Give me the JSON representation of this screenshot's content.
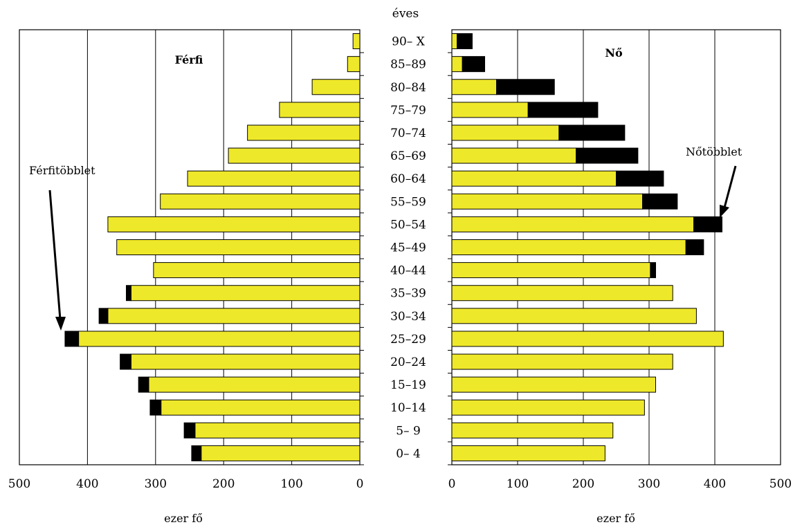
{
  "chart_data": {
    "type": "bar",
    "subtype": "population-pyramid",
    "age_axis_label": "éves",
    "categories": [
      "0– 4",
      "5– 9",
      "10–14",
      "15–19",
      "20–24",
      "25–29",
      "30–34",
      "35–39",
      "40–44",
      "45–49",
      "50–54",
      "55–59",
      "60–64",
      "65–69",
      "70–74",
      "75–79",
      "80–84",
      "85–89",
      "90– X"
    ],
    "left_panel": {
      "title": "Férfi",
      "xlabel": "ezer fő",
      "xlim": [
        0,
        500
      ],
      "xticks": [
        "500",
        "400",
        "300",
        "200",
        "100",
        "0"
      ],
      "series": [
        {
          "role": "base",
          "color": "#EEE82A",
          "values": [
            233,
            242,
            292,
            310,
            336,
            413,
            370,
            336,
            303,
            357,
            370,
            293,
            253,
            193,
            165,
            118,
            70,
            18,
            10
          ]
        },
        {
          "role": "surplus",
          "color": "#000000",
          "values": [
            14,
            16,
            16,
            15,
            16,
            20,
            13,
            7,
            0,
            0,
            0,
            0,
            0,
            0,
            0,
            0,
            0,
            0,
            0
          ]
        }
      ],
      "annotation": "Férfitöbblet"
    },
    "right_panel": {
      "title": "Nő",
      "xlabel": "ezer fő",
      "xlim": [
        0,
        500
      ],
      "xticks": [
        "0",
        "100",
        "200",
        "300",
        "400",
        "500"
      ],
      "series": [
        {
          "role": "base",
          "color": "#EEE82A",
          "values": [
            233,
            245,
            293,
            310,
            336,
            413,
            372,
            336,
            302,
            356,
            368,
            290,
            250,
            189,
            163,
            116,
            68,
            16,
            8
          ]
        },
        {
          "role": "surplus",
          "color": "#000000",
          "values": [
            0,
            0,
            0,
            0,
            0,
            0,
            0,
            0,
            8,
            27,
            43,
            53,
            72,
            94,
            100,
            106,
            88,
            34,
            23
          ]
        }
      ],
      "annotation": "Nőtöbblet"
    },
    "grid": true,
    "colors": {
      "bar": "#EEE82A",
      "surplus": "#000000",
      "grid": "#000000"
    }
  }
}
